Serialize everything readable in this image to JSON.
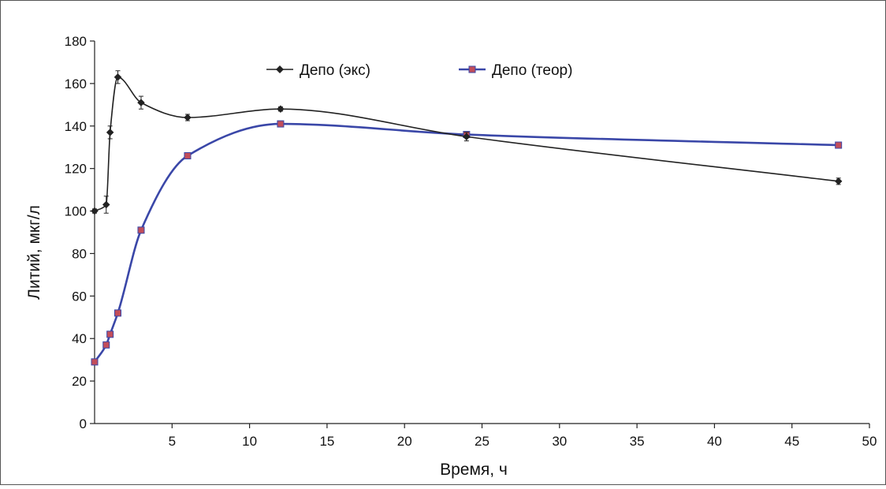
{
  "chart_data": {
    "type": "line",
    "xlabel": "Время, ч",
    "ylabel": "Литий, мкг/л",
    "xlim": [
      0,
      50
    ],
    "ylim": [
      0,
      180
    ],
    "x_ticks": [
      5,
      10,
      15,
      20,
      25,
      30,
      35,
      40,
      45,
      50
    ],
    "y_ticks": [
      0,
      20,
      40,
      60,
      80,
      100,
      120,
      140,
      160,
      180
    ],
    "grid": false,
    "legend_position": "top",
    "series": [
      {
        "name": "Депо (экс)",
        "color": "#222222",
        "marker": "diamond",
        "x": [
          0,
          0.75,
          1,
          1.5,
          3,
          6,
          12,
          24,
          48
        ],
        "y": [
          100,
          103,
          137,
          163,
          151,
          144,
          148,
          135,
          114
        ],
        "error": [
          1,
          4,
          3,
          3,
          3,
          1.5,
          1,
          2,
          1.5
        ]
      },
      {
        "name": "Депо (теор)",
        "color": "#3a47a8",
        "marker_color": "#c24d5a",
        "marker": "square",
        "x": [
          0,
          0.75,
          1,
          1.5,
          3,
          6,
          12,
          24,
          48
        ],
        "y": [
          29,
          37,
          42,
          52,
          91,
          126,
          141,
          136,
          131
        ]
      }
    ]
  }
}
